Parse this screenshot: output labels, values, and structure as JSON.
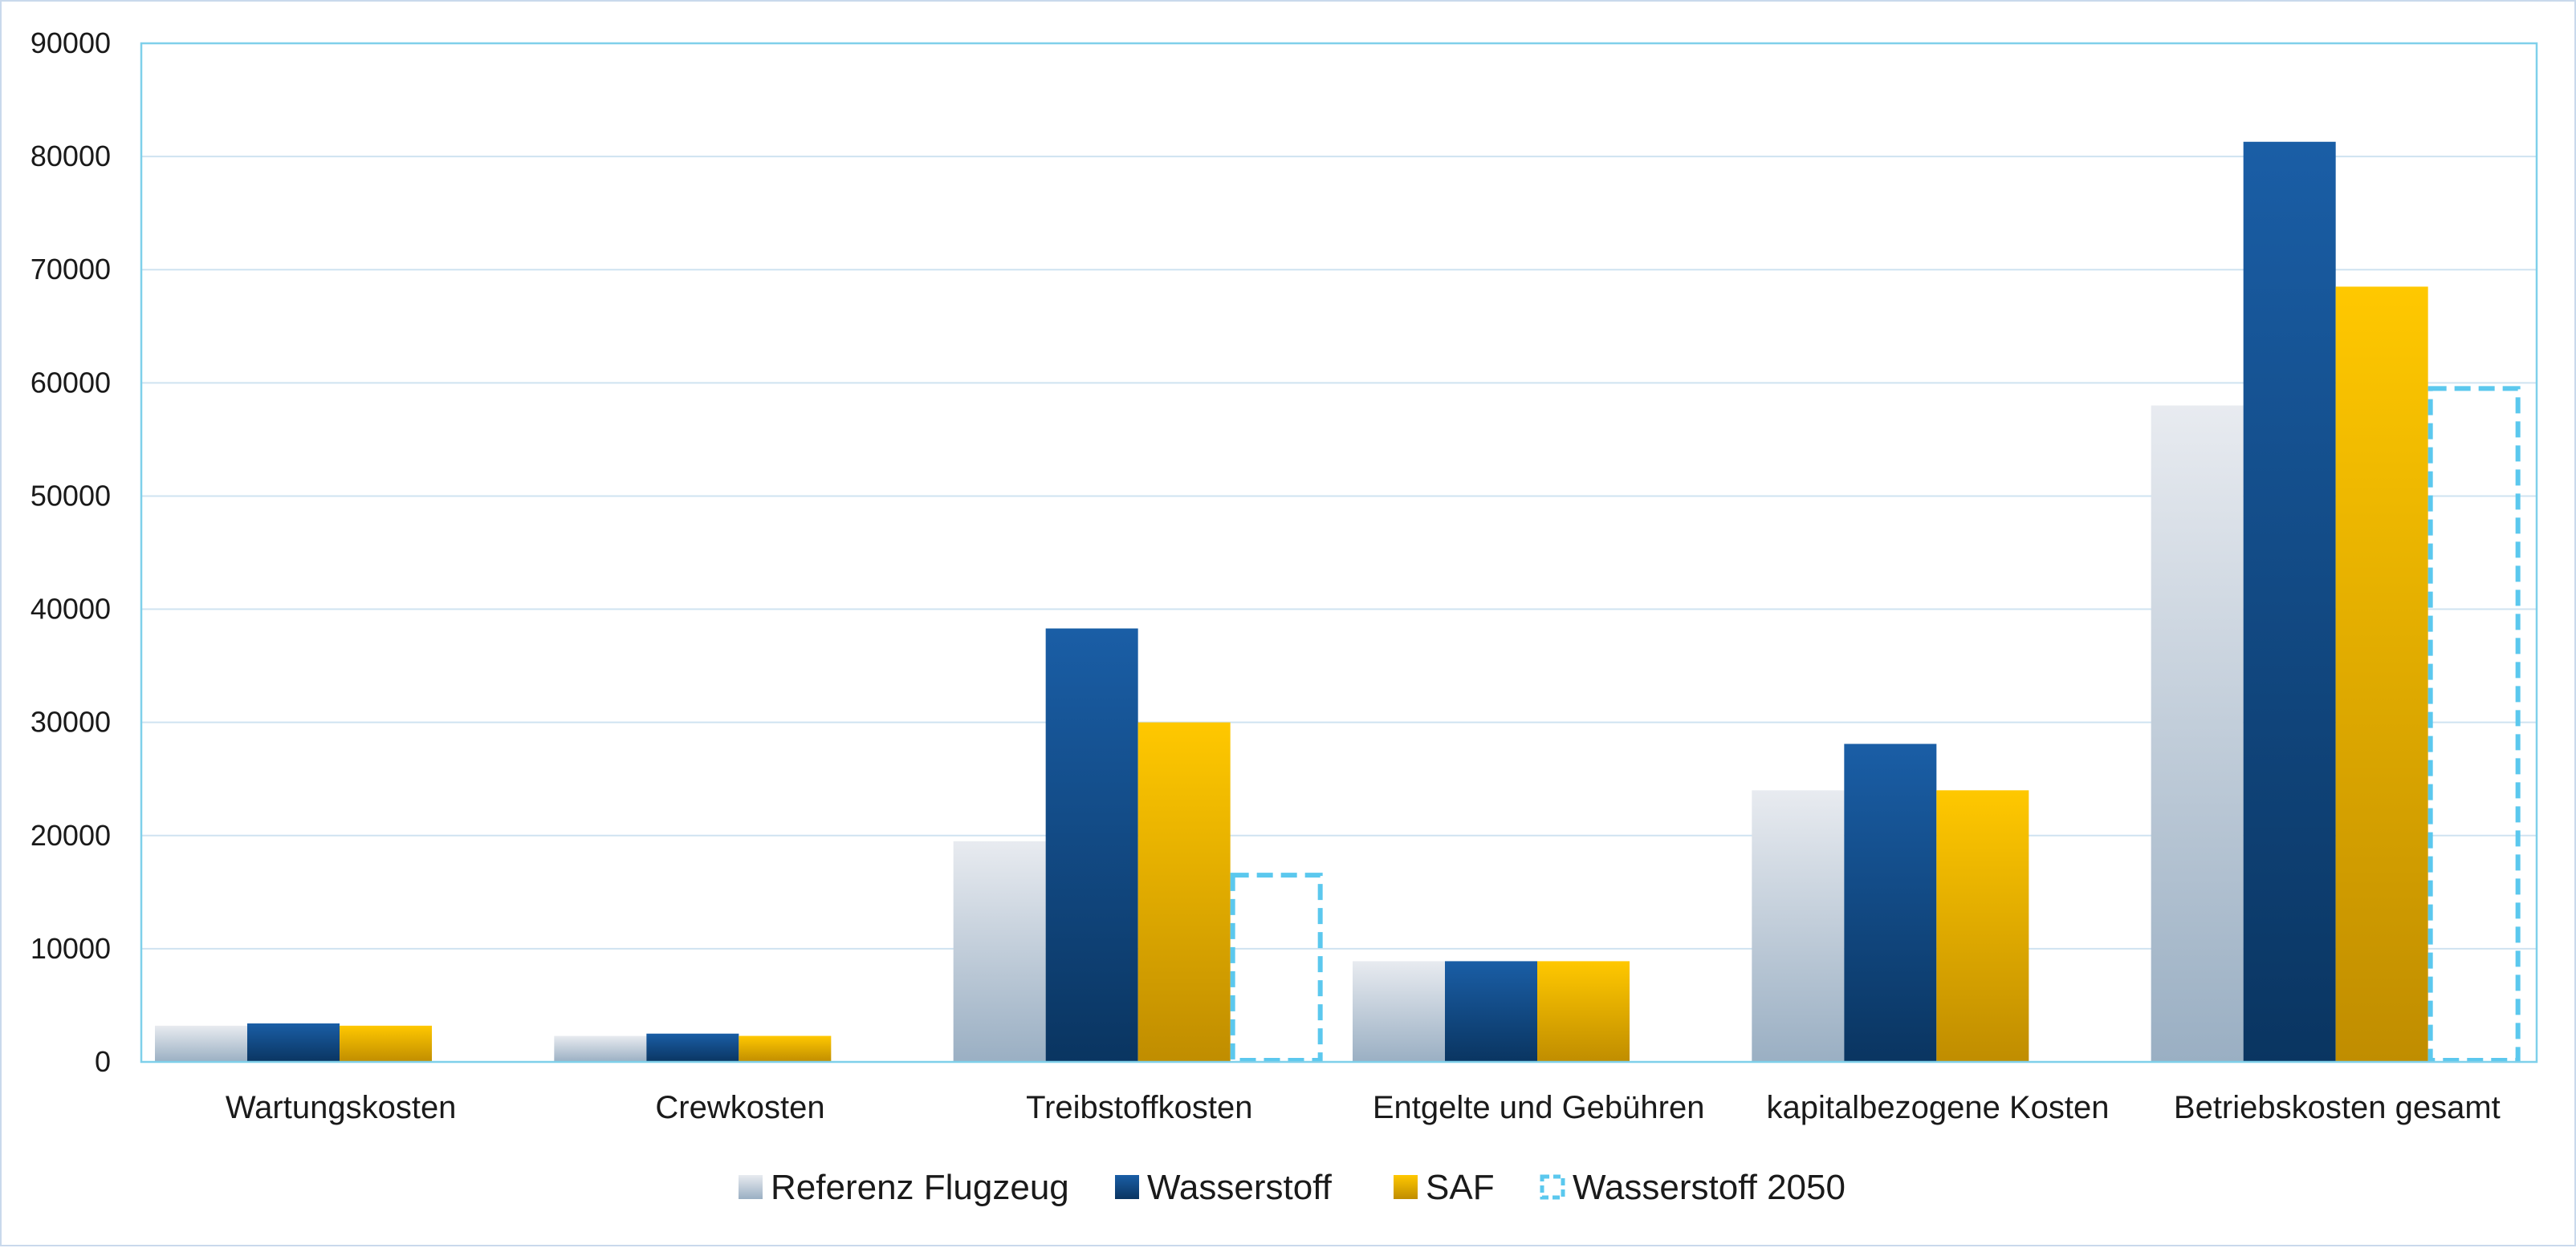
{
  "chart_data": {
    "type": "bar",
    "title": "",
    "xlabel": "",
    "ylabel": "",
    "ylim": [
      0,
      90000
    ],
    "yticks": [
      0,
      10000,
      20000,
      30000,
      40000,
      50000,
      60000,
      70000,
      80000,
      90000
    ],
    "grid": true,
    "legend_position": "bottom",
    "categories": [
      "Wartungskosten",
      "Crewkosten",
      "Treibstoffkosten",
      "Entgelte und Gebühren",
      "kapitalbezogene Kosten",
      "Betriebskosten gesamt"
    ],
    "series": [
      {
        "name": "Referenz Flugzeug",
        "values": [
          3200,
          2300,
          19500,
          8900,
          24000,
          58000
        ],
        "style": "gradient",
        "color_top": "#e8ebf0",
        "color_bottom": "#9aafc3"
      },
      {
        "name": "Wasserstoff",
        "values": [
          3400,
          2500,
          38300,
          8900,
          28100,
          81300
        ],
        "style": "gradient",
        "color_top": "#1a5ea6",
        "color_bottom": "#0a3561"
      },
      {
        "name": "SAF",
        "values": [
          3200,
          2300,
          30000,
          8900,
          24000,
          68500
        ],
        "style": "gradient",
        "color_top": "#ffc800",
        "color_bottom": "#c08d00"
      },
      {
        "name": "Wasserstoff 2050",
        "values": [
          null,
          null,
          16500,
          null,
          null,
          59500
        ],
        "style": "dashed-outline",
        "color": "#5bc8ee"
      }
    ],
    "colors": {
      "plot_border": "#7fd0ea",
      "gridline": "#cfe3f1",
      "outer_border": "#c9d9ec"
    }
  }
}
